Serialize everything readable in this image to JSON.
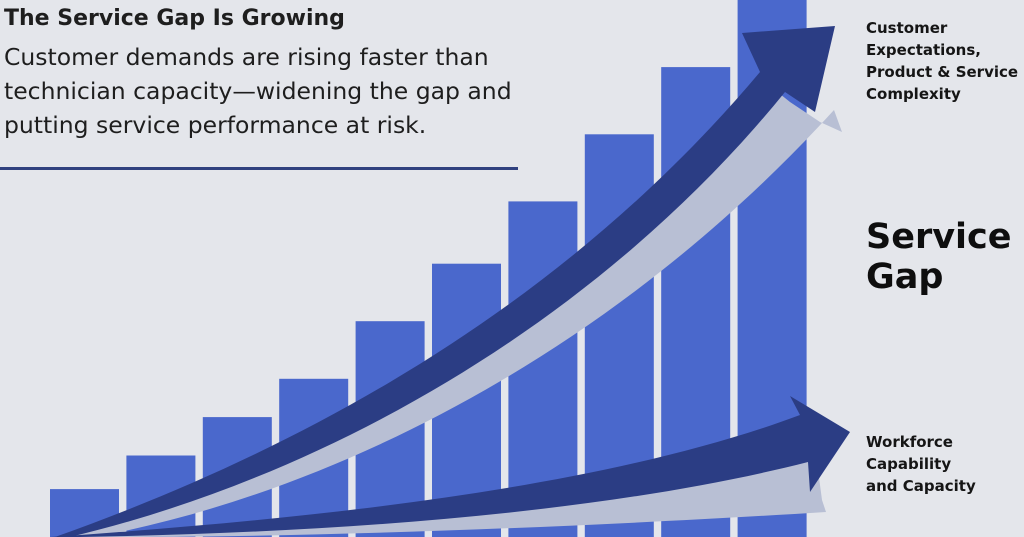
{
  "header": {
    "title": "The Service Gap Is Growing",
    "subtitle": "Customer demands are rising faster than technician capacity—widening the gap and putting service performance at risk."
  },
  "labels": {
    "upper_trend": "Customer\nExpectations,\nProduct & Service\nComplexity",
    "gap": "Service\nGap",
    "lower_trend": "Workforce\nCapability\nand Capacity"
  },
  "colors": {
    "background": "#e4e6eb",
    "bar": "#4a68cc",
    "arrow": "#2b3d84",
    "arrow_shadow": "#b8bfd4",
    "rule": "#30417f"
  },
  "chart_data": {
    "type": "bar",
    "categories": [
      "",
      "",
      "",
      "",
      "",
      "",
      "",
      "",
      "",
      ""
    ],
    "values": [
      10,
      17,
      25,
      33,
      45,
      57,
      70,
      84,
      98,
      112
    ],
    "ylim": [
      0,
      112
    ],
    "grid": false,
    "legend": "none",
    "trend_lines": [
      {
        "label_key": "labels.upper_trend",
        "style": "curved-arrow",
        "position": "upper"
      },
      {
        "label_key": "labels.lower_trend",
        "style": "curved-arrow",
        "position": "lower"
      }
    ]
  }
}
